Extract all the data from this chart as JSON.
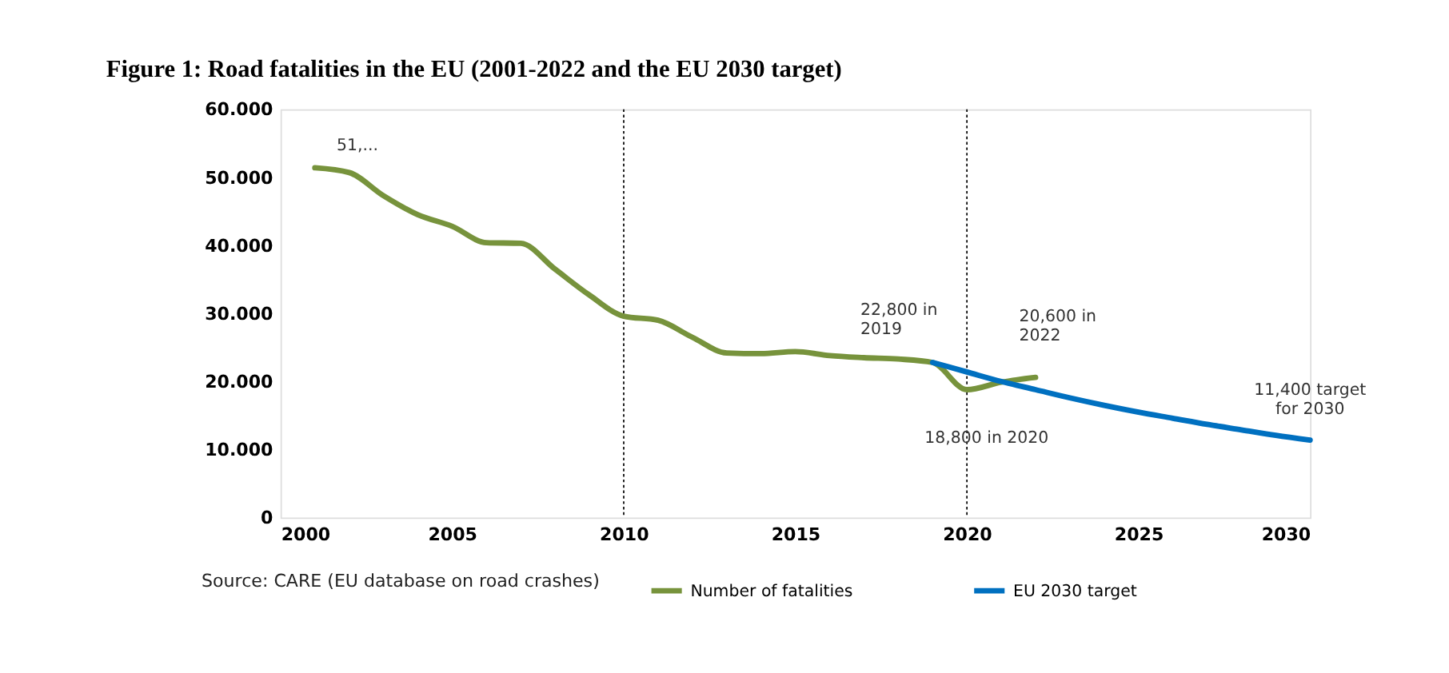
{
  "chart_data": {
    "type": "line",
    "title": "Figure 1: Road fatalities in the EU (2001-2022 and the EU 2030 target)",
    "x": [
      2001,
      2002,
      2003,
      2004,
      2005,
      2006,
      2007,
      2008,
      2009,
      2010,
      2011,
      2012,
      2013,
      2014,
      2015,
      2016,
      2017,
      2018,
      2019,
      2020,
      2021,
      2022
    ],
    "series": [
      {
        "name": "Number of fatalities",
        "color": "#77933c",
        "values": [
          51400,
          50700,
          47300,
          44500,
          42800,
          40400,
          40300,
          36500,
          32700,
          29600,
          29000,
          26500,
          24200,
          24100,
          24400,
          23800,
          23500,
          23300,
          22800,
          18800,
          19900,
          20600
        ]
      },
      {
        "name": "EU 2030 target",
        "color": "#0070c0",
        "x": [
          2019,
          2020,
          2021,
          2022,
          2023,
          2024,
          2025,
          2026,
          2027,
          2028,
          2029,
          2030
        ],
        "values": [
          22800,
          21400,
          20000,
          18800,
          17600,
          16500,
          15500,
          14600,
          13700,
          12900,
          12100,
          11400
        ]
      }
    ],
    "xlim": [
      2000,
      2030
    ],
    "xticks": [
      2000,
      2005,
      2010,
      2015,
      2020,
      2025,
      2030
    ],
    "ylim": [
      0,
      60000
    ],
    "yticks": [
      {
        "value": 0,
        "label": "0"
      },
      {
        "value": 10000,
        "label": "10.000"
      },
      {
        "value": 20000,
        "label": "20.000"
      },
      {
        "value": 30000,
        "label": "30.000"
      },
      {
        "value": 40000,
        "label": "40.000"
      },
      {
        "value": 50000,
        "label": "50.000"
      },
      {
        "value": 60000,
        "label": "60.000"
      }
    ],
    "ref_lines": [
      {
        "axis": "x",
        "value": 2010,
        "color": "#000000",
        "line_style": "dotted"
      },
      {
        "axis": "x",
        "value": 2020,
        "color": "#000000",
        "line_style": "dotted"
      }
    ],
    "annotations": [
      {
        "text": "51,...",
        "x": 2001,
        "y": 51400
      },
      {
        "text": "22,800 in\n2019",
        "x": 2019,
        "y": 22800
      },
      {
        "text": "20,600 in\n2022",
        "x": 2022,
        "y": 20600
      },
      {
        "text": "18,800 in 2020",
        "x": 2020,
        "y": 18800
      },
      {
        "text": "11,400 target\nfor 2030",
        "x": 2030,
        "y": 11400
      },
      "Source: CARE (EU database on road crashes)"
    ],
    "legend": "bottom",
    "grid": false
  }
}
